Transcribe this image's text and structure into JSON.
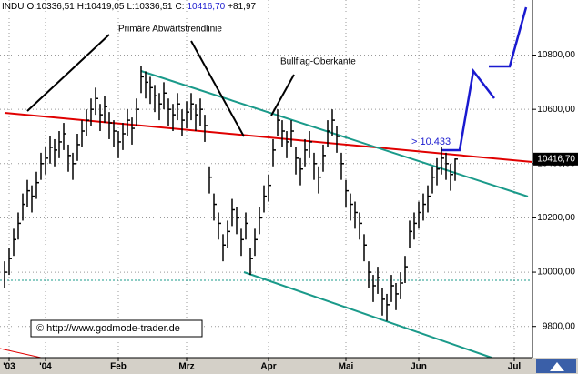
{
  "chart_data": {
    "type": "ohlc",
    "header": [
      "INDU",
      "O:10336,51",
      "H:10419,05",
      "L:10336,51",
      "C:",
      "10416,70",
      "+81,97"
    ],
    "annotations": [
      "Primäre Abwärtstrendlinie",
      "Bullflag-Oberkante",
      "> 10.433",
      "© http://www.godmode-trader.de"
    ],
    "last_label": "10416,70",
    "last_value": 10416.7,
    "reference_line": 9970,
    "xlim": [
      -1,
      116
    ],
    "ylim": [
      9685,
      11003
    ],
    "xticks": [
      {
        "value": 1,
        "label": "'03"
      },
      {
        "value": 9,
        "label": "'04"
      },
      {
        "value": 25,
        "label": "Feb"
      },
      {
        "value": 40,
        "label": "Mrz"
      },
      {
        "value": 58,
        "label": "Apr"
      },
      {
        "value": 75,
        "label": "Mai"
      },
      {
        "value": 91,
        "label": "Jun"
      },
      {
        "value": 112,
        "label": "Jul"
      }
    ],
    "yticks": [
      {
        "value": 9800,
        "label": "9800,00"
      },
      {
        "value": 10000,
        "label": "10000,00"
      },
      {
        "value": 10200,
        "label": "10200,00"
      },
      {
        "value": 10400,
        "label": "10400,00"
      },
      {
        "value": 10600,
        "label": "10600,00"
      },
      {
        "value": 10800,
        "label": "10800,00"
      }
    ],
    "grid": true,
    "color": "#000000",
    "x": [
      0,
      1,
      2,
      3,
      4,
      5,
      6,
      7,
      8,
      9,
      10,
      11,
      12,
      13,
      14,
      15,
      16,
      17,
      18,
      19,
      20,
      21,
      22,
      23,
      24,
      25,
      26,
      27,
      28,
      29,
      30,
      31,
      32,
      33,
      34,
      35,
      36,
      37,
      38,
      39,
      40,
      41,
      42,
      43,
      44,
      45,
      46,
      47,
      48,
      49,
      50,
      51,
      52,
      53,
      54,
      55,
      56,
      57,
      58,
      59,
      60,
      61,
      62,
      63,
      64,
      65,
      66,
      67,
      68,
      69,
      70,
      71,
      72,
      73,
      74,
      75,
      76,
      77,
      78,
      79,
      80,
      81,
      82,
      83,
      84,
      85,
      86,
      87,
      88,
      89,
      90,
      91,
      92,
      93,
      94,
      95,
      96,
      97,
      98,
      99
    ],
    "high": [
      10040,
      10090,
      10160,
      10220,
      10290,
      10340,
      10320,
      10370,
      10440,
      10460,
      10500,
      10490,
      10520,
      10550,
      10470,
      10440,
      10510,
      10560,
      10600,
      10640,
      10680,
      10620,
      10650,
      10590,
      10560,
      10520,
      10550,
      10600,
      10570,
      10640,
      10760,
      10740,
      10720,
      10690,
      10660,
      10700,
      10640,
      10620,
      10660,
      10600,
      10630,
      10660,
      10620,
      10640,
      10580,
      10390,
      10290,
      10220,
      10140,
      10190,
      10270,
      10240,
      10160,
      10220,
      10090,
      10160,
      10240,
      10320,
      10360,
      10490,
      10600,
      10560,
      10520,
      10560,
      10460,
      10420,
      10490,
      10520,
      10440,
      10390,
      10470,
      10560,
      10600,
      10540,
      10440,
      10340,
      10290,
      10260,
      10220,
      10140,
      10040,
      9990,
      10020,
      9940,
      9920,
      9990,
      9960,
      10000,
      10060,
      10190,
      10220,
      10260,
      10290,
      10320,
      10390,
      10420,
      10460,
      10440,
      10400,
      10419.05
    ],
    "low": [
      9940,
      9990,
      10060,
      10120,
      10190,
      10240,
      10220,
      10270,
      10340,
      10360,
      10400,
      10390,
      10420,
      10450,
      10370,
      10340,
      10410,
      10460,
      10500,
      10540,
      10580,
      10520,
      10550,
      10490,
      10460,
      10420,
      10450,
      10500,
      10470,
      10540,
      10660,
      10640,
      10620,
      10590,
      10560,
      10600,
      10540,
      10520,
      10560,
      10500,
      10530,
      10560,
      10520,
      10540,
      10480,
      10290,
      10190,
      10120,
      10040,
      10090,
      10170,
      10140,
      10060,
      10120,
      9990,
      10060,
      10140,
      10220,
      10260,
      10390,
      10500,
      10460,
      10420,
      10460,
      10360,
      10320,
      10390,
      10420,
      10340,
      10290,
      10370,
      10460,
      10500,
      10440,
      10340,
      10240,
      10190,
      10160,
      10120,
      10040,
      9940,
      9890,
      9920,
      9840,
      9820,
      9890,
      9860,
      9900,
      9960,
      10090,
      10120,
      10160,
      10190,
      10220,
      10290,
      10320,
      10360,
      10340,
      10300,
      10336.51
    ],
    "close": [
      10000,
      10050,
      10120,
      10180,
      10250,
      10300,
      10280,
      10330,
      10400,
      10420,
      10460,
      10450,
      10480,
      10510,
      10430,
      10400,
      10470,
      10520,
      10560,
      10600,
      10640,
      10580,
      10610,
      10550,
      10520,
      10480,
      10510,
      10560,
      10530,
      10600,
      10720,
      10700,
      10680,
      10650,
      10620,
      10660,
      10600,
      10580,
      10620,
      10560,
      10590,
      10620,
      10580,
      10600,
      10540,
      10350,
      10250,
      10180,
      10100,
      10150,
      10230,
      10200,
      10120,
      10180,
      10050,
      10120,
      10200,
      10280,
      10320,
      10450,
      10560,
      10520,
      10480,
      10520,
      10420,
      10380,
      10450,
      10480,
      10400,
      10350,
      10430,
      10520,
      10560,
      10500,
      10400,
      10300,
      10250,
      10220,
      10180,
      10100,
      10000,
      9950,
      9980,
      9900,
      9880,
      9950,
      9920,
      9960,
      10020,
      10150,
      10180,
      10220,
      10250,
      10280,
      10350,
      10380,
      10420,
      10400,
      10360,
      10416.7
    ]
  }
}
